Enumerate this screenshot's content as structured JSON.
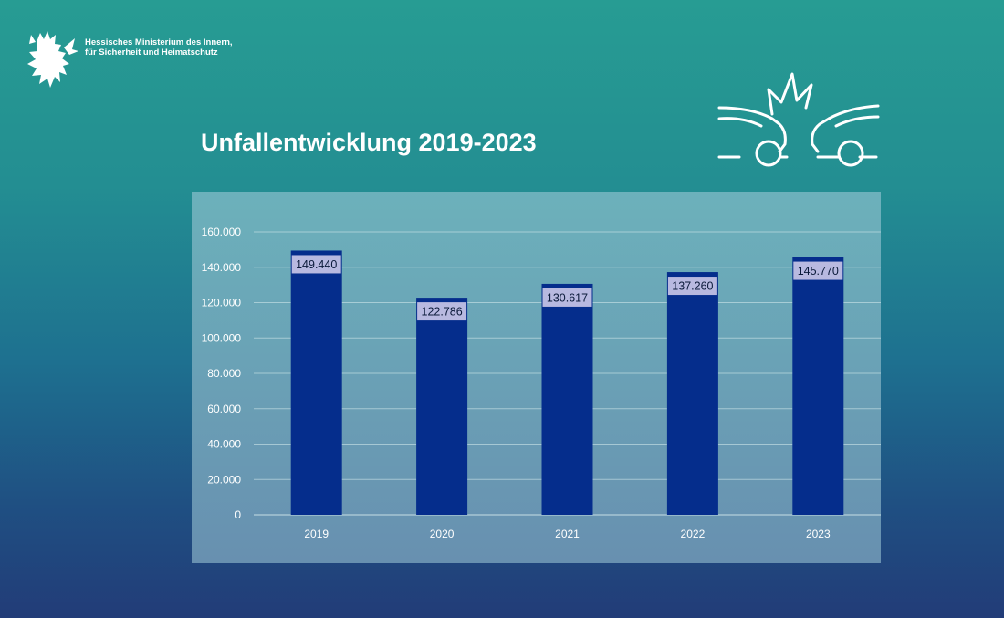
{
  "header": {
    "ministry_line1": "Hessisches Ministerium des Innern,",
    "ministry_line2": "für Sicherheit und Heimatschutz",
    "logo_icon": "hessen-lion-icon",
    "crash_icon": "car-crash-icon"
  },
  "chart_data": {
    "type": "bar",
    "title": "Unfallentwicklung 2019-2023",
    "categories": [
      "2019",
      "2020",
      "2021",
      "2022",
      "2023"
    ],
    "values": [
      149440,
      122786,
      130617,
      137260,
      145770
    ],
    "value_labels": [
      "149.440",
      "122.786",
      "130.617",
      "137.260",
      "145.770"
    ],
    "ylim": [
      0,
      160000
    ],
    "yticks": [
      0,
      20000,
      40000,
      60000,
      80000,
      100000,
      120000,
      140000,
      160000
    ],
    "ytick_labels": [
      "0",
      "20.000",
      "40.000",
      "60.000",
      "80.000",
      "100.000",
      "120.000",
      "140.000",
      "160.000"
    ],
    "xlabel": "",
    "ylabel": "",
    "grid": true,
    "legend": "none",
    "bar_color": "#052d8c",
    "plot_background": "#6aaab8",
    "label_background": "#b8b9e0"
  }
}
